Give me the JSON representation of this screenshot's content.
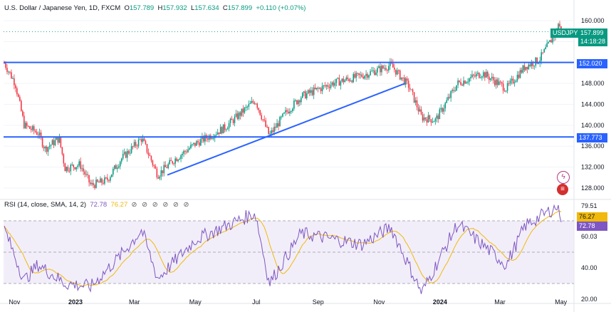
{
  "header": {
    "symbol": "U.S. Dollar / Japanese Yen, 1D, FXCM",
    "o_label": "O",
    "o_value": "157.789",
    "h_label": "H",
    "h_value": "157.932",
    "l_label": "L",
    "l_value": "157.634",
    "c_label": "C",
    "c_value": "157.899",
    "change": "+0.110 (+0.07%)"
  },
  "rsi_header": {
    "label": "RSI (14, close, SMA, 14, 2)",
    "rsi_value": "72.78",
    "sma_value": "76.27",
    "icons": "⊘ ⊘ ⊘ ⊘ ⊘ ⊘"
  },
  "price_tags": {
    "symbol": "USDJPY",
    "price": "157.899",
    "countdown": "14:18:28",
    "level_high": "152.020",
    "level_low": "137.773"
  },
  "rsi_tags": {
    "sma": "76.27",
    "rsi": "72.78"
  },
  "colors": {
    "up": "#089981",
    "down": "#f23645",
    "line": "#2962ff",
    "rsi": "#7e57c2",
    "rsi_sma": "#f0b90b",
    "band": "#ede7f6"
  },
  "chart_data": [
    {
      "type": "candlestick",
      "series": [
        {
          "name": "USDJPY"
        }
      ],
      "y_ticks": [
        128,
        132,
        136,
        140,
        144,
        148,
        152,
        156,
        160
      ],
      "ylim": [
        126.5,
        161.5
      ],
      "horizontal_levels": [
        152.02,
        137.773
      ],
      "trendlines": [
        {
          "from": [
            "2023-04-03",
            130.5
          ],
          "to": [
            "2023-11-27",
            148.0
          ]
        }
      ],
      "x_labels": [
        "Nov",
        "2023",
        "Mar",
        "May",
        "Jul",
        "Sep",
        "Nov",
        "2024",
        "Mar",
        "May"
      ],
      "x_bold": [
        "2023",
        "2024"
      ],
      "last_close": 157.899,
      "approx_path": [
        [
          "2022-10-21",
          151.9
        ],
        [
          "2022-11-01",
          148.0
        ],
        [
          "2022-11-10",
          140.0
        ],
        [
          "2022-11-24",
          138.5
        ],
        [
          "2022-12-01",
          135.5
        ],
        [
          "2022-12-15",
          137.5
        ],
        [
          "2022-12-21",
          131.8
        ],
        [
          "2023-01-05",
          132.5
        ],
        [
          "2023-01-16",
          128.5
        ],
        [
          "2023-02-01",
          129.5
        ],
        [
          "2023-02-15",
          133.5
        ],
        [
          "2023-03-08",
          137.5
        ],
        [
          "2023-03-24",
          130.5
        ],
        [
          "2023-04-10",
          133.5
        ],
        [
          "2023-05-01",
          136.5
        ],
        [
          "2023-05-30",
          139.5
        ],
        [
          "2023-06-30",
          144.8
        ],
        [
          "2023-07-14",
          138.0
        ],
        [
          "2023-07-31",
          142.5
        ],
        [
          "2023-08-15",
          145.5
        ],
        [
          "2023-09-15",
          148.0
        ],
        [
          "2023-10-15",
          149.5
        ],
        [
          "2023-11-13",
          151.5
        ],
        [
          "2023-12-01",
          147.5
        ],
        [
          "2023-12-14",
          141.5
        ],
        [
          "2023-12-28",
          141.0
        ],
        [
          "2024-01-19",
          148.0
        ],
        [
          "2024-02-13",
          150.0
        ],
        [
          "2024-03-08",
          147.0
        ],
        [
          "2024-03-27",
          151.3
        ],
        [
          "2024-04-10",
          152.5
        ],
        [
          "2024-04-26",
          157.5
        ],
        [
          "2024-04-29",
          159.5
        ],
        [
          "2024-05-02",
          157.9
        ]
      ]
    },
    {
      "type": "line",
      "name": "RSI (14, close, SMA, 14, 2)",
      "series": [
        {
          "name": "RSI",
          "last": 72.78
        },
        {
          "name": "RSI SMA",
          "last": 76.27
        }
      ],
      "y_ticks": [
        20,
        40,
        60.03,
        79.51
      ],
      "ylim": [
        20,
        80
      ],
      "band": [
        30,
        70
      ],
      "approx_path": [
        [
          "2022-10-21",
          65
        ],
        [
          "2022-11-10",
          32
        ],
        [
          "2022-11-24",
          42
        ],
        [
          "2022-12-21",
          30
        ],
        [
          "2023-01-16",
          28
        ],
        [
          "2023-02-15",
          48
        ],
        [
          "2023-03-08",
          64
        ],
        [
          "2023-03-24",
          33
        ],
        [
          "2023-05-01",
          58
        ],
        [
          "2023-06-30",
          75
        ],
        [
          "2023-07-14",
          30
        ],
        [
          "2023-08-15",
          62
        ],
        [
          "2023-10-15",
          55
        ],
        [
          "2023-11-13",
          66
        ],
        [
          "2023-12-14",
          24
        ],
        [
          "2024-01-19",
          68
        ],
        [
          "2024-03-08",
          42
        ],
        [
          "2024-03-27",
          67
        ],
        [
          "2024-04-29",
          79.51
        ],
        [
          "2024-05-02",
          72.78
        ]
      ]
    }
  ]
}
